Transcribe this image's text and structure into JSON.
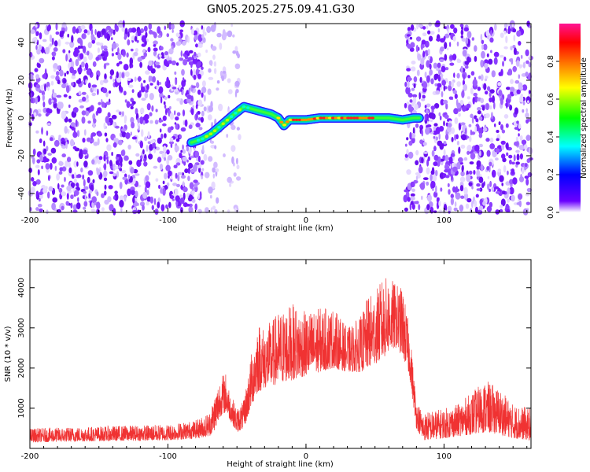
{
  "title": "GN05.2025.275.09.41.G30",
  "chart_data": [
    {
      "type": "heatmap",
      "name": "spectrogram",
      "xlabel": "Height of straight line (km)",
      "ylabel": "Frequency (Hz)",
      "xlim": [
        -200,
        163
      ],
      "ylim": [
        -50,
        50
      ],
      "xticks": [
        -200,
        -100,
        0,
        100
      ],
      "yticks": [
        -40,
        -20,
        0,
        20,
        40
      ],
      "colorbar": {
        "label": "Normalized spectral amplitude",
        "range": [
          0.0,
          1.0
        ],
        "ticks": [
          0.0,
          0.2,
          0.4,
          0.6,
          0.8
        ],
        "tick_labels": [
          "0.0",
          "0.2",
          "0.4",
          "0.6",
          "0.8"
        ],
        "colors": [
          "#ffffff",
          "#6a00ff",
          "#0000ff",
          "#00ffff",
          "#00ff00",
          "#ffff00",
          "#ff8000",
          "#ff0000",
          "#ff1493"
        ]
      },
      "noise_regions": [
        {
          "from": -200,
          "to": -75,
          "density": "high"
        },
        {
          "from": -75,
          "to": -48,
          "density": "low"
        },
        {
          "from": -48,
          "to": 72,
          "density": "none"
        },
        {
          "from": 72,
          "to": 163,
          "density": "high"
        }
      ],
      "signal_ridge": {
        "x": [
          -83,
          -75,
          -68,
          -60,
          -52,
          -45,
          -40,
          -35,
          -30,
          -25,
          -20,
          -16,
          -12,
          -8,
          -4,
          0,
          10,
          20,
          30,
          40,
          50,
          60,
          70,
          78,
          82
        ],
        "y": [
          -13,
          -11,
          -8,
          -3,
          2,
          6,
          5,
          4,
          3,
          2,
          0,
          -4,
          -1,
          -1,
          -1,
          -1,
          0,
          0,
          0,
          0,
          0,
          0,
          -1,
          0,
          0
        ],
        "peak_amplitude_region": [
          -20,
          50
        ]
      }
    },
    {
      "type": "line",
      "name": "snr",
      "xlabel": "Height of straight line (km)",
      "ylabel": "SNR (10 * v/v)",
      "xlim": [
        -200,
        163
      ],
      "ylim": [
        0,
        4700
      ],
      "xticks": [
        -200,
        -100,
        0,
        100
      ],
      "yticks": [
        1000,
        2000,
        3000,
        4000
      ],
      "color": "#f03232",
      "envelope": {
        "x": [
          -200,
          -150,
          -100,
          -80,
          -70,
          -65,
          -62,
          -58,
          -55,
          -50,
          -45,
          -40,
          -35,
          -30,
          -20,
          -10,
          0,
          10,
          20,
          30,
          40,
          45,
          50,
          55,
          60,
          65,
          70,
          75,
          80,
          85,
          100,
          110,
          120,
          130,
          140,
          150,
          163
        ],
        "baseline": [
          150,
          180,
          200,
          250,
          300,
          500,
          800,
          900,
          700,
          400,
          500,
          1000,
          1400,
          1500,
          1600,
          1700,
          1800,
          1900,
          2000,
          1900,
          1900,
          2000,
          2100,
          2200,
          2400,
          2500,
          2300,
          1800,
          500,
          200,
          250,
          300,
          350,
          400,
          350,
          250,
          200
        ],
        "peak": [
          500,
          550,
          600,
          700,
          900,
          1500,
          1800,
          1900,
          1400,
          1000,
          1200,
          2300,
          3200,
          3000,
          3400,
          3600,
          3400,
          3500,
          3500,
          3000,
          3300,
          3800,
          3900,
          4200,
          4300,
          4100,
          4000,
          3000,
          1200,
          900,
          1000,
          1100,
          1400,
          1700,
          1500,
          1100,
          1000
        ]
      }
    }
  ]
}
